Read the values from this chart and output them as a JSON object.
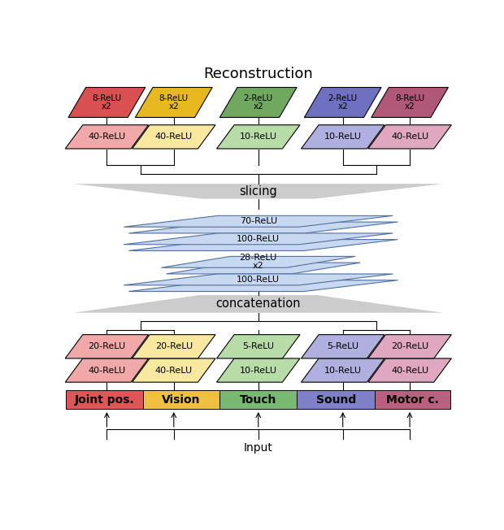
{
  "fig_width": 6.2,
  "fig_height": 6.52,
  "dpi": 100,
  "title": "Reconstruction",
  "input_label": "Input",
  "slicing_label": "slicing",
  "concat_label": "concatenation",
  "modalities": [
    "Joint pos.",
    "Vision",
    "Touch",
    "Sound",
    "Motor c."
  ],
  "modality_colors": [
    "#e05555",
    "#f0c040",
    "#78b870",
    "#8080c8",
    "#b86080"
  ],
  "top_boxes": [
    {
      "label": "8-ReLU\nx2",
      "color": "#d95050",
      "light": "#f0a8a8"
    },
    {
      "label": "8-ReLU\nx2",
      "color": "#e8b820",
      "light": "#f8e8a0"
    },
    {
      "label": "2-ReLU\nx2",
      "color": "#70a860",
      "light": "#b8dca8"
    },
    {
      "label": "2-ReLU\nx2",
      "color": "#7070c0",
      "light": "#b0b0e0"
    },
    {
      "label": "8-ReLU\nx2",
      "color": "#b05878",
      "light": "#e0a8c0"
    }
  ],
  "mid_boxes": [
    {
      "label": "40-ReLU",
      "light": "#f0a8a8"
    },
    {
      "label": "40-ReLU",
      "light": "#f8e8a0"
    },
    {
      "label": "10-ReLU",
      "light": "#b8dca8"
    },
    {
      "label": "10-ReLU",
      "light": "#b0b0e0"
    },
    {
      "label": "40-ReLU",
      "light": "#e0a8c0"
    }
  ],
  "bot_top_boxes": [
    {
      "label": "20-ReLU",
      "light": "#f0a8a8"
    },
    {
      "label": "20-ReLU",
      "light": "#f8e8a0"
    },
    {
      "label": "5-ReLU",
      "light": "#b8dca8"
    },
    {
      "label": "5-ReLU",
      "light": "#b0b0e0"
    },
    {
      "label": "20-ReLU",
      "light": "#e0a8c0"
    }
  ],
  "bot_bot_boxes": [
    {
      "label": "40-ReLU",
      "light": "#f0a8a8"
    },
    {
      "label": "40-ReLU",
      "light": "#f8e8a0"
    },
    {
      "label": "10-ReLU",
      "light": "#b8dca8"
    },
    {
      "label": "10-ReLU",
      "light": "#b0b0e0"
    },
    {
      "label": "40-ReLU",
      "light": "#e0a8c0"
    }
  ],
  "shared_color": "#c8d8f0",
  "shared_edge": "#5070a0",
  "shared_labels": [
    "70-ReLU",
    "100-ReLU",
    "28-ReLU\nx2",
    "100-ReLU"
  ]
}
